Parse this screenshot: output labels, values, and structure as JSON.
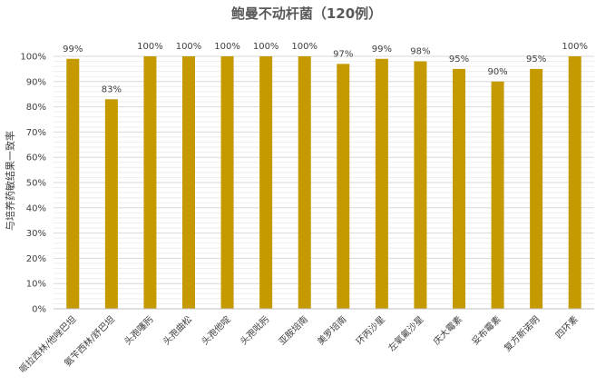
{
  "chart_data": {
    "type": "bar",
    "title": "鲍曼不动杆菌（120例）",
    "xlabel": "",
    "ylabel": "与培养药敏结果一致率",
    "ylim": [
      0,
      100
    ],
    "yticks": [
      "0%",
      "10%",
      "20%",
      "30%",
      "40%",
      "50%",
      "60%",
      "70%",
      "80%",
      "90%",
      "100%"
    ],
    "grid": true,
    "bar_color": "#C49A00",
    "categories": [
      "哌拉西林/他唑巴坦",
      "氨苄西林/舒巴坦",
      "头孢噻肟",
      "头孢曲松",
      "头孢他啶",
      "头孢吡肟",
      "亚胺培南",
      "美罗培南",
      "环丙沙星",
      "左氧氟沙星",
      "庆大霉素",
      "妥布霉素",
      "复方新诺明",
      "四环素"
    ],
    "values": [
      99,
      83,
      100,
      100,
      100,
      100,
      100,
      97,
      99,
      98,
      95,
      90,
      95,
      100
    ],
    "data_labels": [
      "99%",
      "83%",
      "100%",
      "100%",
      "100%",
      "100%",
      "100%",
      "97%",
      "99%",
      "98%",
      "95%",
      "90%",
      "95%",
      "100%"
    ]
  }
}
